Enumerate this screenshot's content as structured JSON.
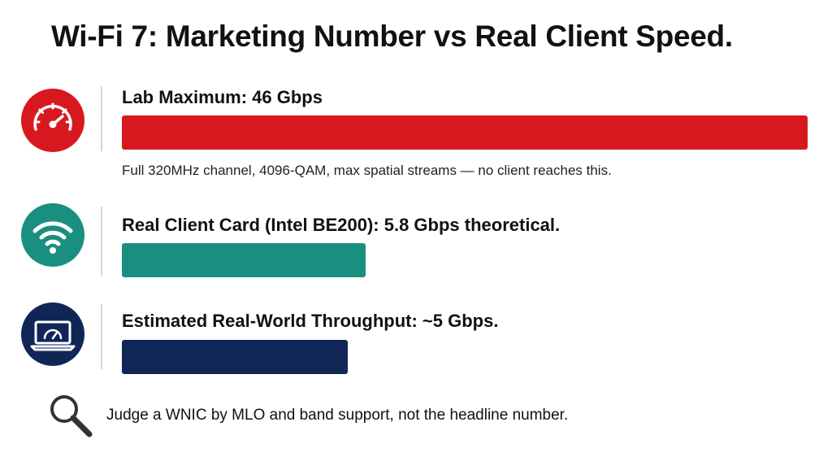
{
  "title": "Wi-Fi 7: Marketing Number vs Real Client Speed.",
  "colors": {
    "red": "#d7191f",
    "teal": "#1b8f7f",
    "navy": "#0f2657"
  },
  "rows": [
    {
      "label": "Lab Maximum: 46 Gbps",
      "icon": "speedometer-icon",
      "color": "#d7191f"
    },
    {
      "label": "Real Client Card (Intel BE200): 5.8 Gbps theoretical.",
      "icon": "wifi-icon",
      "color": "#1b8f7f"
    },
    {
      "label": "Estimated Real-World Throughput: ~5 Gbps.",
      "icon": "laptop-speed-icon",
      "color": "#0f2657"
    }
  ],
  "note": "Full 320MHz channel, 4096-QAM, max spatial streams — no client reaches this.",
  "footer": {
    "text": "Judge a WNIC by MLO and band support, not the headline number.",
    "icon": "magnifier-icon"
  },
  "chart_data": {
    "type": "bar",
    "orientation": "horizontal",
    "categories": [
      "Lab Maximum",
      "Real Client Card (Intel BE200)",
      "Estimated Real-World Throughput"
    ],
    "values": [
      46,
      5.8,
      5
    ],
    "unit": "Gbps",
    "grid": false,
    "legend": "none"
  }
}
